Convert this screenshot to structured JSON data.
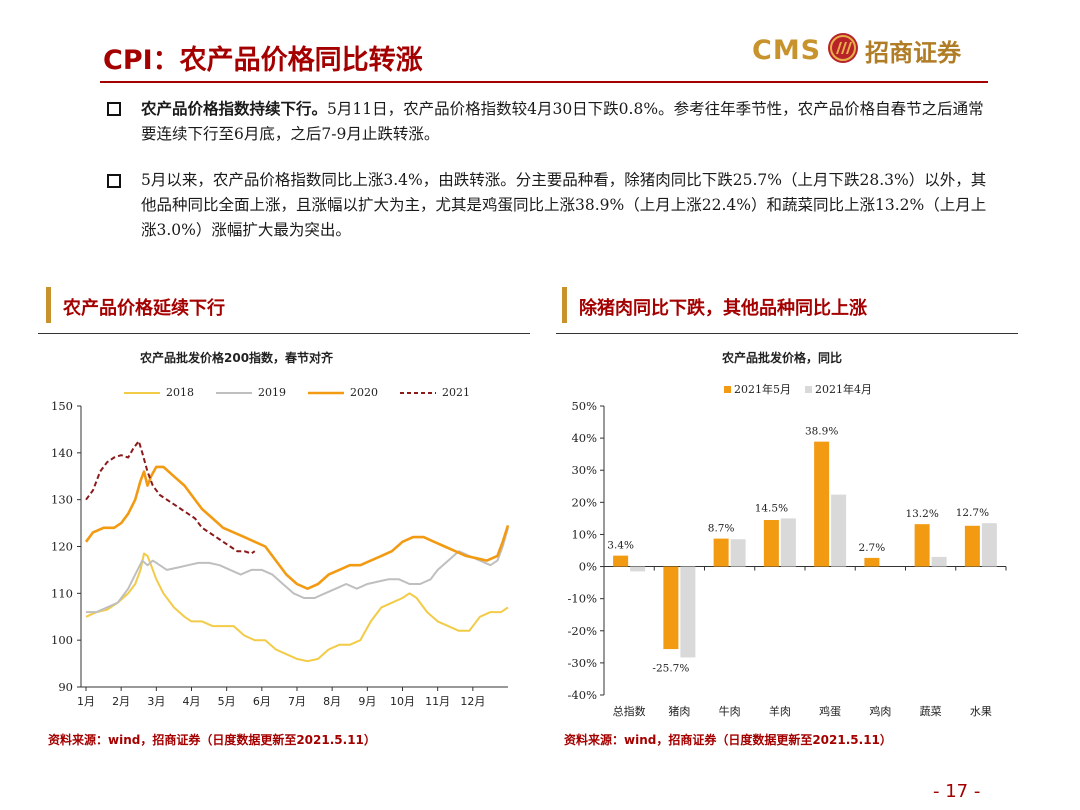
{
  "header": {
    "title": "CPI：农产品价格同比转涨",
    "brand_en": "CMS",
    "brand_cn": "招商证券"
  },
  "bullets": [
    {
      "bold": "农产品价格指数持续下行。",
      "text": "5月11日，农产品价格指数较4月30日下跌0.8%。参考往年季节性，农产品价格自春节之后通常要连续下行至6月底，之后7-9月止跌转涨。"
    },
    {
      "bold": "",
      "text": "5月以来，农产品价格指数同比上涨3.4%，由跌转涨。分主要品种看，除猪肉同比下跌25.7%（上月下跌28.3%）以外，其他品种同比全面上涨，且涨幅以扩大为主，尤其是鸡蛋同比上涨38.9%（上月上涨22.4%）和蔬菜同比上涨13.2%（上月上涨3.0%）涨幅扩大最为突出。"
    }
  ],
  "left_section": {
    "title": "农产品价格延续下行",
    "source": "资料来源：wind，招商证券（日度数据更新至2021.5.11）"
  },
  "right_section": {
    "title": "除猪肉同比下跌，其他品种同比上涨",
    "source": "资料来源：wind，招商证券（日度数据更新至2021.5.11）"
  },
  "page_number": "- 17 -",
  "colors": {
    "title_red": "#a40000",
    "gold": "#c8932c",
    "s2018": "#f2cb47",
    "s2019": "#bfbfbf",
    "s2020": "#f39a13",
    "s2021": "#8b1a1a",
    "bar_may": "#f39a13",
    "bar_apr": "#d9d9d9"
  },
  "chart_data": [
    {
      "type": "line",
      "title": "农产品批发价格200指数，春节对齐",
      "x_ticks": [
        "1月",
        "2月",
        "3月",
        "4月",
        "5月",
        "6月",
        "7月",
        "8月",
        "9月",
        "10月",
        "11月",
        "12月"
      ],
      "ylim": [
        90,
        150
      ],
      "y_ticks": [
        90,
        100,
        110,
        120,
        130,
        140,
        150
      ],
      "legend_position": "top",
      "series": [
        {
          "name": "2018",
          "style": "solid",
          "points": [
            [
              0,
              105
            ],
            [
              0.3,
              106
            ],
            [
              0.6,
              106.5
            ],
            [
              0.9,
              108
            ],
            [
              1.2,
              110
            ],
            [
              1.4,
              112
            ],
            [
              1.55,
              115
            ],
            [
              1.65,
              118.5
            ],
            [
              1.75,
              118
            ],
            [
              1.85,
              116
            ],
            [
              2.0,
              113
            ],
            [
              2.2,
              110
            ],
            [
              2.5,
              107
            ],
            [
              2.8,
              105
            ],
            [
              3.0,
              104
            ],
            [
              3.3,
              104
            ],
            [
              3.6,
              103
            ],
            [
              3.9,
              103
            ],
            [
              4.2,
              103
            ],
            [
              4.5,
              101
            ],
            [
              4.8,
              100
            ],
            [
              5.1,
              100
            ],
            [
              5.4,
              98
            ],
            [
              5.7,
              97
            ],
            [
              6.0,
              96
            ],
            [
              6.3,
              95.5
            ],
            [
              6.6,
              96
            ],
            [
              6.9,
              98
            ],
            [
              7.2,
              99
            ],
            [
              7.5,
              99
            ],
            [
              7.8,
              100
            ],
            [
              8.1,
              104
            ],
            [
              8.4,
              107
            ],
            [
              8.7,
              108
            ],
            [
              9.0,
              109
            ],
            [
              9.2,
              110
            ],
            [
              9.4,
              109
            ],
            [
              9.7,
              106
            ],
            [
              10.0,
              104
            ],
            [
              10.3,
              103
            ],
            [
              10.6,
              102
            ],
            [
              10.9,
              102
            ],
            [
              11.2,
              105
            ],
            [
              11.5,
              106
            ],
            [
              11.8,
              106
            ],
            [
              12.0,
              107
            ]
          ]
        },
        {
          "name": "2019",
          "style": "solid",
          "points": [
            [
              0,
              106
            ],
            [
              0.3,
              106
            ],
            [
              0.6,
              107
            ],
            [
              0.9,
              108
            ],
            [
              1.2,
              111
            ],
            [
              1.4,
              114
            ],
            [
              1.6,
              117
            ],
            [
              1.75,
              116
            ],
            [
              1.9,
              117
            ],
            [
              2.1,
              116
            ],
            [
              2.3,
              115
            ],
            [
              2.6,
              115.5
            ],
            [
              2.9,
              116
            ],
            [
              3.2,
              116.5
            ],
            [
              3.5,
              116.5
            ],
            [
              3.8,
              116
            ],
            [
              4.1,
              115
            ],
            [
              4.4,
              114
            ],
            [
              4.7,
              115
            ],
            [
              5.0,
              115
            ],
            [
              5.3,
              114
            ],
            [
              5.6,
              112
            ],
            [
              5.9,
              110
            ],
            [
              6.2,
              109
            ],
            [
              6.5,
              109
            ],
            [
              6.8,
              110
            ],
            [
              7.1,
              111
            ],
            [
              7.4,
              112
            ],
            [
              7.7,
              111
            ],
            [
              8.0,
              112
            ],
            [
              8.3,
              112.5
            ],
            [
              8.6,
              113
            ],
            [
              8.9,
              113
            ],
            [
              9.2,
              112
            ],
            [
              9.5,
              112
            ],
            [
              9.8,
              113
            ],
            [
              10.0,
              115
            ],
            [
              10.3,
              117
            ],
            [
              10.6,
              119
            ],
            [
              10.9,
              118
            ],
            [
              11.2,
              117
            ],
            [
              11.5,
              116
            ],
            [
              11.7,
              117
            ],
            [
              11.85,
              120
            ],
            [
              12.0,
              124
            ]
          ]
        },
        {
          "name": "2020",
          "style": "solid",
          "points": [
            [
              0,
              121
            ],
            [
              0.2,
              123
            ],
            [
              0.5,
              124
            ],
            [
              0.8,
              124
            ],
            [
              1.0,
              125
            ],
            [
              1.2,
              127
            ],
            [
              1.4,
              130
            ],
            [
              1.55,
              134
            ],
            [
              1.65,
              136
            ],
            [
              1.75,
              133
            ],
            [
              1.85,
              135
            ],
            [
              2.0,
              137
            ],
            [
              2.2,
              137
            ],
            [
              2.5,
              135
            ],
            [
              2.8,
              133
            ],
            [
              3.0,
              131
            ],
            [
              3.3,
              128
            ],
            [
              3.6,
              126
            ],
            [
              3.9,
              124
            ],
            [
              4.2,
              123
            ],
            [
              4.5,
              122
            ],
            [
              4.8,
              121
            ],
            [
              5.1,
              120
            ],
            [
              5.4,
              117
            ],
            [
              5.7,
              114
            ],
            [
              6.0,
              112
            ],
            [
              6.3,
              111
            ],
            [
              6.6,
              112
            ],
            [
              6.9,
              114
            ],
            [
              7.2,
              115
            ],
            [
              7.5,
              116
            ],
            [
              7.8,
              116
            ],
            [
              8.1,
              117
            ],
            [
              8.4,
              118
            ],
            [
              8.7,
              119
            ],
            [
              9.0,
              121
            ],
            [
              9.3,
              122
            ],
            [
              9.6,
              122
            ],
            [
              9.9,
              121
            ],
            [
              10.2,
              120
            ],
            [
              10.5,
              119
            ],
            [
              10.8,
              118
            ],
            [
              11.1,
              117.5
            ],
            [
              11.4,
              117
            ],
            [
              11.7,
              118
            ],
            [
              11.85,
              121
            ],
            [
              12.0,
              124.5
            ]
          ]
        },
        {
          "name": "2021",
          "style": "dashed",
          "points": [
            [
              0,
              130
            ],
            [
              0.2,
              132
            ],
            [
              0.4,
              136
            ],
            [
              0.6,
              138
            ],
            [
              0.8,
              139
            ],
            [
              1.0,
              139.5
            ],
            [
              1.2,
              139
            ],
            [
              1.35,
              141
            ],
            [
              1.5,
              142.5
            ],
            [
              1.6,
              140
            ],
            [
              1.75,
              136
            ],
            [
              1.9,
              133
            ],
            [
              2.1,
              131
            ],
            [
              2.3,
              130
            ],
            [
              2.5,
              129
            ],
            [
              2.7,
              128
            ],
            [
              2.9,
              127
            ],
            [
              3.1,
              126
            ],
            [
              3.3,
              124
            ],
            [
              3.5,
              123
            ],
            [
              3.7,
              122
            ],
            [
              3.9,
              121
            ],
            [
              4.1,
              120
            ],
            [
              4.3,
              119
            ],
            [
              4.5,
              119
            ],
            [
              4.7,
              118.5
            ],
            [
              4.8,
              119
            ]
          ]
        }
      ]
    },
    {
      "type": "bar",
      "title": "农产品批发价格，同比",
      "categories": [
        "总指数",
        "猪肉",
        "牛肉",
        "羊肉",
        "鸡蛋",
        "鸡肉",
        "蔬菜",
        "水果"
      ],
      "ylim": [
        -40,
        50
      ],
      "y_ticks": [
        -40,
        -30,
        -20,
        -10,
        0,
        10,
        20,
        30,
        40,
        50
      ],
      "y_unit": "%",
      "legend_position": "top",
      "series": [
        {
          "name": "2021年5月",
          "values": [
            3.4,
            -25.7,
            8.7,
            14.5,
            38.9,
            2.7,
            13.2,
            12.7
          ]
        },
        {
          "name": "2021年4月",
          "values": [
            -1.5,
            -28.3,
            8.5,
            15.0,
            22.4,
            null,
            3.0,
            13.5
          ]
        }
      ],
      "data_labels": [
        "3.4%",
        "-25.7%",
        "8.7%",
        "14.5%",
        "38.9%",
        "2.7%",
        "13.2%",
        "12.7%"
      ]
    }
  ]
}
